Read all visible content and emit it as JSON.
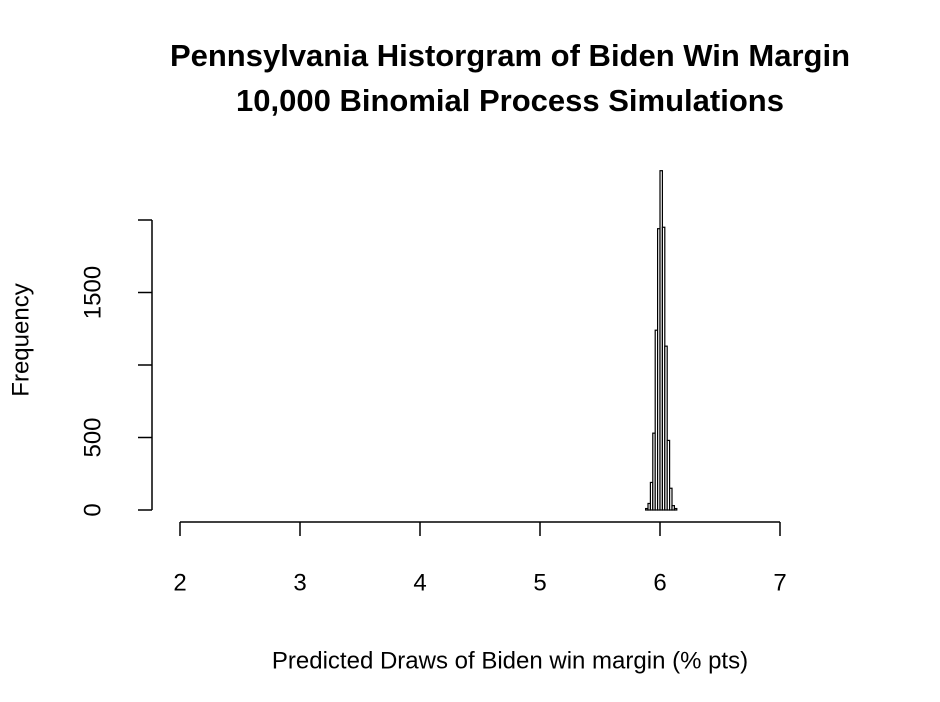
{
  "chart_data": {
    "type": "histogram",
    "title": "Pennsylvania Historgram of Biden Win Margin",
    "subtitle": "10,000 Binomial Process Simulations",
    "x_label": "Predicted Draws of Biden win margin (% pts)",
    "y_label": "Frequency",
    "bins": [
      5.88,
      5.9,
      5.92,
      5.94,
      5.96,
      5.98,
      6.0,
      6.02,
      6.04,
      6.06,
      6.08,
      6.1,
      6.12,
      6.14
    ],
    "values": [
      10,
      45,
      190,
      530,
      1240,
      1940,
      2340,
      1950,
      1130,
      480,
      150,
      30,
      10
    ],
    "color": "#000000",
    "fill": "#ffffff",
    "xlim": [
      2,
      7
    ],
    "xticks": [
      2,
      3,
      4,
      5,
      6,
      7
    ],
    "ylim": [
      0,
      2400
    ],
    "yticks": [
      0,
      500,
      {
        "value": 1000
      },
      1500,
      {
        "value": 2000
      }
    ]
  }
}
